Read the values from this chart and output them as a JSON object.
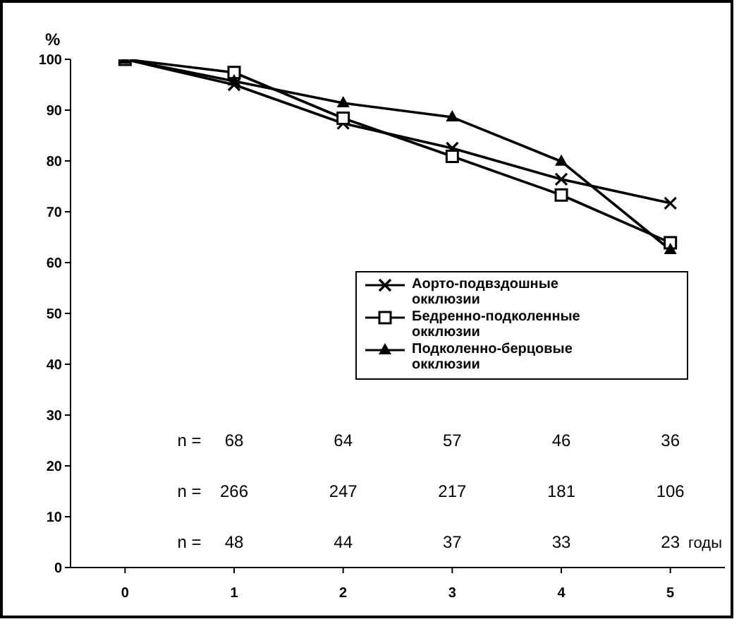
{
  "chart_data": {
    "type": "line",
    "ylabel": "%",
    "xlabel": "годы",
    "categories": [
      "0",
      "1",
      "2",
      "3",
      "4",
      "5"
    ],
    "ylim": [
      0,
      100
    ],
    "yticks": [
      0,
      10,
      20,
      30,
      40,
      50,
      60,
      70,
      80,
      90,
      100
    ],
    "grid": false,
    "legend": "right",
    "series": [
      {
        "name": "Аорто-подвздошные окклюзии",
        "color": "#000000",
        "marker": "cross",
        "values": [
          100,
          95,
          87.4,
          82.5,
          76.4,
          71.7
        ]
      },
      {
        "name": "Бедренно-подколенные окклюзии",
        "color": "#000000",
        "marker": "square",
        "values": [
          100,
          97.4,
          88.4,
          80.9,
          73.3,
          63.9
        ]
      },
      {
        "name": "Подколенно-берцовые окклюзии",
        "color": "#000000",
        "marker": "triangle",
        "values": [
          100,
          95.7,
          91.4,
          88.6,
          79.9,
          62.5
        ]
      }
    ],
    "annotations": [
      "n =",
      "68",
      "64",
      "57",
      "46",
      "36",
      "n =",
      "266",
      "247",
      "217",
      "181",
      "106",
      "n =",
      "48",
      "44",
      "37",
      "33",
      "23"
    ]
  }
}
